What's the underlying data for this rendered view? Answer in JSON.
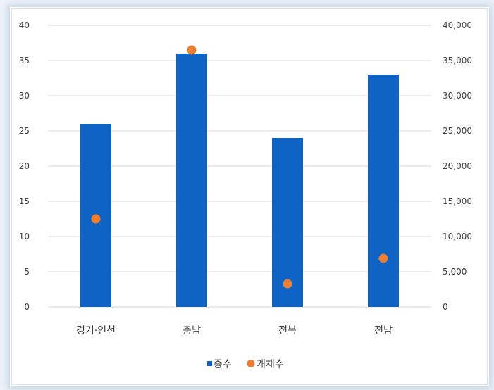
{
  "chart_data": {
    "type": "bar",
    "categories": [
      "경기·인천",
      "충남",
      "전북",
      "전남"
    ],
    "series": [
      {
        "name": "종수",
        "type": "bar",
        "axis": "left",
        "values": [
          26,
          36,
          24,
          33
        ]
      },
      {
        "name": "개체수",
        "type": "scatter",
        "axis": "right",
        "values": [
          12500,
          36500,
          3300,
          6900
        ]
      }
    ],
    "y_left": {
      "min": 0,
      "max": 40,
      "step": 5,
      "ticks": [
        "0",
        "5",
        "10",
        "15",
        "20",
        "25",
        "30",
        "35",
        "40"
      ]
    },
    "y_right": {
      "min": 0,
      "max": 40000,
      "step": 5000,
      "ticks": [
        "0",
        "5,000",
        "10,000",
        "15,000",
        "20,000",
        "25,000",
        "30,000",
        "35,000",
        "40,000"
      ]
    },
    "grid": true,
    "legend": {
      "position": "bottom",
      "entries": [
        "종수",
        "개체수"
      ]
    },
    "colors": {
      "bar": "#0e63c4",
      "marker": "#ed7d31",
      "grid": "#d9d9d9"
    }
  }
}
